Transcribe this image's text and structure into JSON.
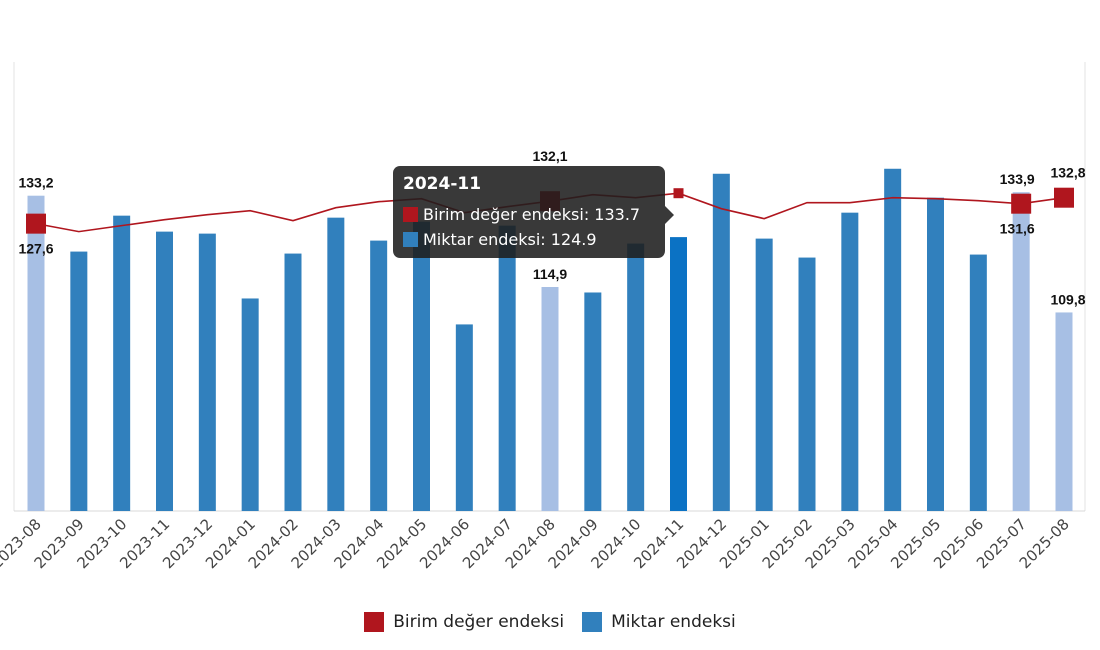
{
  "chart_data": {
    "type": "bar",
    "categories": [
      "2023-08",
      "2023-09",
      "2023-10",
      "2023-11",
      "2023-12",
      "2024-01",
      "2024-02",
      "2024-03",
      "2024-04",
      "2024-05",
      "2024-06",
      "2024-07",
      "2024-08",
      "2024-09",
      "2024-10",
      "2024-11",
      "2024-12",
      "2025-01",
      "2025-02",
      "2025-03",
      "2025-04",
      "2025-05",
      "2025-06",
      "2025-07",
      "2025-08"
    ],
    "series": [
      {
        "name": "Birim değer endeksi",
        "type": "line",
        "color": "#b0161e",
        "values": [
          127.6,
          126.0,
          127.2,
          128.4,
          129.4,
          130.2,
          128.2,
          130.8,
          132.0,
          132.6,
          129.8,
          131.0,
          132.1,
          133.4,
          132.8,
          133.7,
          130.6,
          128.6,
          131.8,
          131.8,
          132.8,
          132.6,
          132.2,
          131.6,
          132.8
        ]
      },
      {
        "name": "Miktar endeksi",
        "type": "bar",
        "color": "#3180bd",
        "values": [
          133.2,
          122.0,
          129.2,
          126.0,
          125.6,
          112.6,
          121.6,
          128.8,
          124.2,
          128.0,
          107.4,
          127.2,
          114.9,
          113.8,
          123.6,
          124.9,
          137.6,
          124.6,
          120.8,
          129.8,
          138.6,
          132.8,
          121.4,
          133.9,
          109.8
        ]
      }
    ],
    "highlighted_categories": [
      "2023-08",
      "2024-08",
      "2025-07",
      "2025-08"
    ],
    "data_labels": [
      {
        "category": "2023-08",
        "series": "Miktar endeksi",
        "text": "133,2"
      },
      {
        "category": "2023-08",
        "series": "Birim değer endeksi",
        "text": "127,6"
      },
      {
        "category": "2024-08",
        "series": "Birim değer endeksi",
        "text": "132,1"
      },
      {
        "category": "2024-08",
        "series": "Miktar endeksi",
        "text": "114,9"
      },
      {
        "category": "2025-07",
        "series": "Miktar endeksi",
        "text": "133,9"
      },
      {
        "category": "2025-07",
        "series": "Birim değer endeksi",
        "text": "131,6"
      },
      {
        "category": "2025-08",
        "series": "Birim değer endeksi",
        "text": "132,8"
      },
      {
        "category": "2025-08",
        "series": "Miktar endeksi",
        "text": "109,8"
      }
    ],
    "ylim": [
      70,
      160
    ],
    "grid": false,
    "legend": "bottom"
  },
  "tooltip": {
    "title": "2024-11",
    "rows": [
      {
        "label": "Birim değer endeksi: 133.7",
        "color": "#b0161e"
      },
      {
        "label": "Miktar endeksi: 124.9",
        "color": "#3180bd"
      }
    ]
  },
  "legend": [
    {
      "label": "Birim değer endeksi",
      "color": "#b0161e"
    },
    {
      "label": "Miktar endeksi",
      "color": "#3180bd"
    }
  ]
}
